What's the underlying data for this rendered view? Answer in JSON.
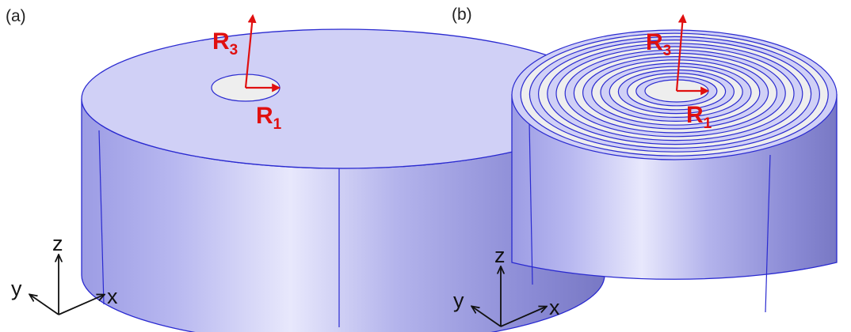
{
  "panels": [
    {
      "label": "(a)",
      "radius_labels": {
        "r3_main": "R",
        "r3_sub": "3",
        "r1_main": "R",
        "r1_sub": "1"
      },
      "axes": {
        "z": "z",
        "y": "y",
        "x": "x"
      },
      "rings": 1
    },
    {
      "label": "(b)",
      "radius_labels": {
        "r3_main": "R",
        "r3_sub": "3",
        "r1_main": "R",
        "r1_sub": "1"
      },
      "axes": {
        "z": "z",
        "y": "y",
        "x": "x"
      },
      "rings": 8
    }
  ],
  "colors": {
    "cylinder_top": "#d0d0f6",
    "cylinder_edge": "#2a2ad0",
    "ring_fill": "#eeeeee",
    "arrow": "#e01010",
    "axes": "#111111"
  }
}
